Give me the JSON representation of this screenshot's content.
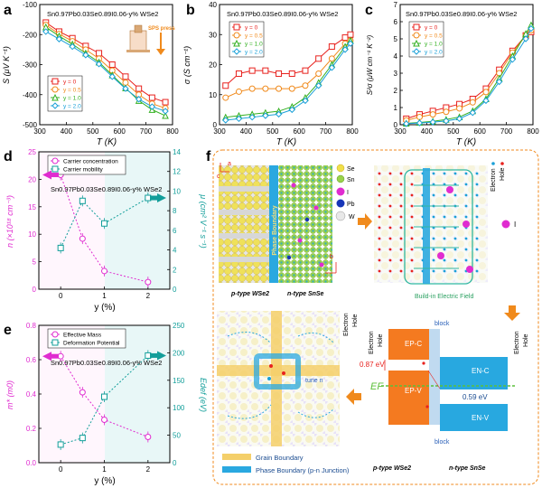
{
  "colors": {
    "red": "#e8221e",
    "orange": "#f08a1c",
    "green": "#33b021",
    "blue": "#1aa0d8",
    "magenta": "#e02cd0",
    "teal": "#129e9a",
    "boundary_blue": "#2aa8e0",
    "grain_yellow": "#f4cf6a"
  },
  "panel_a": {
    "letter": "a",
    "title": "Sn0.97Pb0.03Se0.89I0.06-y% WSe2",
    "ylabel": "S (μV K⁻¹)",
    "xlabel": "T (K)",
    "annotation": "SPS press",
    "legend": [
      "y = 0",
      "y = 0.5",
      "y = 1.0",
      "y = 2.0"
    ]
  },
  "panel_b": {
    "letter": "b",
    "title": "Sn0.97Pb0.03Se0.89I0.06-y% WSe2",
    "ylabel": "σ (S cm⁻¹)",
    "xlabel": "T (K)",
    "legend": [
      "y = 0",
      "y = 0.5",
      "y = 1.0",
      "y = 2.0"
    ]
  },
  "panel_c": {
    "letter": "c",
    "title": "Sn0.97Pb0.03Se0.89I0.06-y% WSe2",
    "ylabel": "S²σ (μW cm⁻¹ K⁻²)",
    "xlabel": "T (K)",
    "legend": [
      "y = 0",
      "y = 0.5",
      "y = 1.0",
      "y = 2.0"
    ]
  },
  "panel_d": {
    "letter": "d",
    "title": "Sn0.97Pb0.03Se0.89I0.06-y% WSe2",
    "ylabel_left": "n (×10¹⁸ cm⁻³)",
    "ylabel_right": "μ (cm² V⁻¹ s⁻¹)",
    "xlabel": "y (%)",
    "legend": [
      "Carrier concentration",
      "Carrier mobility"
    ]
  },
  "panel_e": {
    "letter": "e",
    "title": "Sn0.97Pb0.03Se0.89I0.06-y% WSe2",
    "ylabel_left": "m* (m0)",
    "ylabel_right": "Edef (eV)",
    "xlabel": "y (%)",
    "legend": [
      "Effective Mass",
      "Deformation Potential"
    ]
  },
  "panel_f": {
    "letter": "f",
    "species": [
      "Se",
      "Sn",
      "I",
      "Pb",
      "W"
    ],
    "phase_boundary": "Phase Boundary",
    "left_label": "p-type WSe2",
    "right_label": "n-type SnSe",
    "builtin_field": "Build-in Electric Field",
    "electron": "Electron",
    "hole": "Hole",
    "iodine": "I",
    "axis_a": "a",
    "axis_b": "b",
    "axis_c": "c",
    "tune_n": "tune n",
    "block": "block",
    "ep_c": "EP-C",
    "ep_v": "EP-V",
    "en_c": "EN-C",
    "en_v": "EN-V",
    "ef": "EF",
    "gap_p": "0.87 eV",
    "gap_n": "0.59 eV",
    "legend_grain": "Grain Boundary",
    "legend_phase": "Phase Boundary (p-n Junction)"
  },
  "chart_data": [
    {
      "panel": "a",
      "type": "line",
      "xlabel": "T (K)",
      "ylabel": "S (μV K⁻¹)",
      "xlim": [
        300,
        800
      ],
      "ylim": [
        -500,
        -100
      ],
      "xticks": [
        300,
        400,
        500,
        600,
        700,
        800
      ],
      "yticks": [
        -500,
        -400,
        -300,
        -200,
        -100
      ],
      "x": [
        323,
        373,
        423,
        473,
        523,
        573,
        623,
        673,
        723,
        773
      ],
      "series": [
        {
          "name": "y = 0",
          "color": "#e8221e",
          "marker": "square",
          "values": [
            -160,
            -190,
            -212,
            -238,
            -262,
            -300,
            -340,
            -380,
            -410,
            -425
          ]
        },
        {
          "name": "y = 0.5",
          "color": "#f08a1c",
          "marker": "circle",
          "values": [
            -168,
            -198,
            -222,
            -250,
            -280,
            -320,
            -360,
            -400,
            -430,
            -445
          ]
        },
        {
          "name": "y = 1.0",
          "color": "#33b021",
          "marker": "triangle",
          "values": [
            -175,
            -205,
            -232,
            -262,
            -292,
            -335,
            -378,
            -420,
            -450,
            -470
          ]
        },
        {
          "name": "y = 2.0",
          "color": "#1aa0d8",
          "marker": "diamond",
          "values": [
            -190,
            -215,
            -240,
            -268,
            -298,
            -340,
            -380,
            -415,
            -440,
            -455
          ]
        }
      ]
    },
    {
      "panel": "b",
      "type": "line",
      "xlabel": "T (K)",
      "ylabel": "σ (S cm⁻¹)",
      "xlim": [
        300,
        800
      ],
      "ylim": [
        0,
        40
      ],
      "xticks": [
        300,
        400,
        500,
        600,
        700,
        800
      ],
      "yticks": [
        0,
        10,
        20,
        30,
        40
      ],
      "x": [
        323,
        373,
        423,
        473,
        523,
        573,
        623,
        673,
        723,
        773,
        793
      ],
      "series": [
        {
          "name": "y = 0",
          "color": "#e8221e",
          "marker": "square",
          "values": [
            13,
            17,
            18,
            18,
            17,
            17,
            18,
            22,
            26,
            29,
            30
          ]
        },
        {
          "name": "y = 0.5",
          "color": "#f08a1c",
          "marker": "circle",
          "values": [
            9,
            11,
            12,
            12,
            12,
            12,
            13,
            17,
            22,
            27,
            28
          ]
        },
        {
          "name": "y = 1.0",
          "color": "#33b021",
          "marker": "triangle",
          "values": [
            2.5,
            3,
            3.5,
            4,
            4.5,
            6,
            9,
            14,
            20,
            26,
            28
          ]
        },
        {
          "name": "y = 2.0",
          "color": "#1aa0d8",
          "marker": "diamond",
          "values": [
            1.5,
            2,
            2.5,
            3,
            3.5,
            5,
            8,
            13,
            19,
            25,
            27
          ]
        }
      ]
    },
    {
      "panel": "c",
      "type": "line",
      "xlabel": "T (K)",
      "ylabel": "S²σ (μW cm⁻¹ K⁻²)",
      "xlim": [
        300,
        800
      ],
      "ylim": [
        0,
        7
      ],
      "xticks": [
        300,
        400,
        500,
        600,
        700,
        800
      ],
      "yticks": [
        0,
        1,
        2,
        3,
        4,
        5,
        6,
        7
      ],
      "x": [
        323,
        373,
        423,
        473,
        523,
        573,
        623,
        673,
        723,
        773,
        793
      ],
      "series": [
        {
          "name": "y = 0",
          "color": "#e8221e",
          "marker": "square",
          "values": [
            0.35,
            0.6,
            0.8,
            1.0,
            1.2,
            1.5,
            2.1,
            3.2,
            4.3,
            5.2,
            5.4
          ]
        },
        {
          "name": "y = 0.5",
          "color": "#f08a1c",
          "marker": "circle",
          "values": [
            0.25,
            0.45,
            0.6,
            0.75,
            0.95,
            1.3,
            1.9,
            3.0,
            4.2,
            5.2,
            5.5
          ]
        },
        {
          "name": "y = 1.0",
          "color": "#33b021",
          "marker": "triangle",
          "values": [
            0.08,
            0.13,
            0.2,
            0.3,
            0.45,
            0.8,
            1.5,
            2.7,
            4.0,
            5.3,
            5.8
          ]
        },
        {
          "name": "y = 2.0",
          "color": "#1aa0d8",
          "marker": "diamond",
          "values": [
            0.06,
            0.1,
            0.15,
            0.22,
            0.35,
            0.7,
            1.4,
            2.5,
            3.8,
            5.0,
            5.6
          ]
        }
      ]
    },
    {
      "panel": "d",
      "type": "scatter",
      "xlabel": "y (%)",
      "ylabel": "n (×10¹⁸ cm⁻³)",
      "ylabel_right": "μ (cm² V⁻¹ s⁻¹)",
      "xlim": [
        -0.5,
        2.5
      ],
      "ylim": [
        0,
        25
      ],
      "ylim_right": [
        0,
        14
      ],
      "xticks": [
        0,
        1,
        2
      ],
      "yticks": [
        0,
        5,
        10,
        15,
        20,
        25
      ],
      "yticks_right": [
        0,
        2,
        4,
        6,
        8,
        10,
        12,
        14
      ],
      "x": [
        0,
        0.5,
        1,
        2
      ],
      "series": [
        {
          "name": "Carrier concentration",
          "axis": "left",
          "color": "#e02cd0",
          "values": [
            20.8,
            9.2,
            3.3,
            1.3
          ]
        },
        {
          "name": "Carrier mobility",
          "axis": "right",
          "color": "#129e9a",
          "values": [
            4.2,
            9.0,
            6.7,
            9.3
          ]
        }
      ]
    },
    {
      "panel": "e",
      "type": "scatter",
      "xlabel": "y (%)",
      "ylabel": "m* (m0)",
      "ylabel_right": "Edef (eV)",
      "xlim": [
        -0.5,
        2.5
      ],
      "ylim": [
        0,
        0.8
      ],
      "ylim_right": [
        0,
        250
      ],
      "xticks": [
        0,
        1,
        2
      ],
      "yticks": [
        0.0,
        0.2,
        0.4,
        0.6,
        0.8
      ],
      "yticks_right": [
        0,
        50,
        100,
        150,
        200,
        250
      ],
      "x": [
        0,
        0.5,
        1,
        2
      ],
      "series": [
        {
          "name": "Effective Mass",
          "axis": "left",
          "color": "#e02cd0",
          "values": [
            0.62,
            0.41,
            0.25,
            0.15
          ]
        },
        {
          "name": "Deformation Potential",
          "axis": "right",
          "color": "#129e9a",
          "values": [
            33,
            45,
            120,
            195
          ]
        }
      ]
    }
  ]
}
